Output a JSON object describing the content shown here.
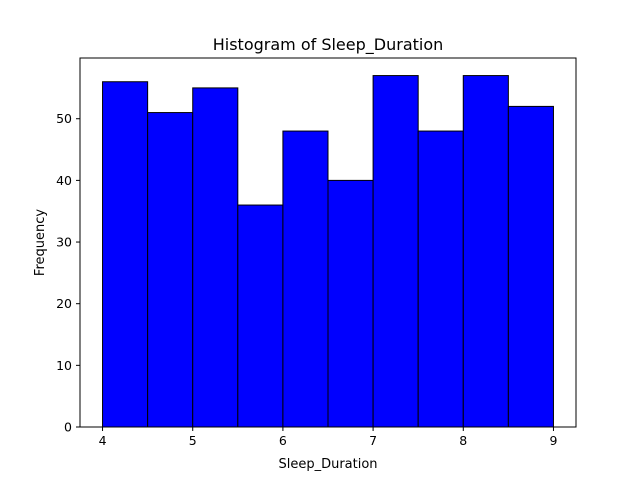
{
  "chart_data": {
    "type": "bar",
    "title": "Histogram of Sleep_Duration",
    "xlabel": "Sleep_Duration",
    "ylabel": "Frequency",
    "bins": [
      {
        "x0": 4.0,
        "x1": 4.5,
        "count": 56
      },
      {
        "x0": 4.5,
        "x1": 5.0,
        "count": 51
      },
      {
        "x0": 5.0,
        "x1": 5.5,
        "count": 55
      },
      {
        "x0": 5.5,
        "x1": 6.0,
        "count": 36
      },
      {
        "x0": 6.0,
        "x1": 6.5,
        "count": 48
      },
      {
        "x0": 6.5,
        "x1": 7.0,
        "count": 40
      },
      {
        "x0": 7.0,
        "x1": 7.5,
        "count": 57
      },
      {
        "x0": 7.5,
        "x1": 8.0,
        "count": 48
      },
      {
        "x0": 8.0,
        "x1": 8.5,
        "count": 57
      },
      {
        "x0": 8.5,
        "x1": 9.0,
        "count": 52
      }
    ],
    "xlim": [
      3.75,
      9.25
    ],
    "ylim": [
      0,
      59.85
    ],
    "xticks": [
      "4",
      "5",
      "6",
      "7",
      "8",
      "9"
    ],
    "yticks": [
      "0",
      "10",
      "20",
      "30",
      "40",
      "50"
    ],
    "bar_color": "#0000ff",
    "edge_color": "#000000",
    "grid": false
  }
}
